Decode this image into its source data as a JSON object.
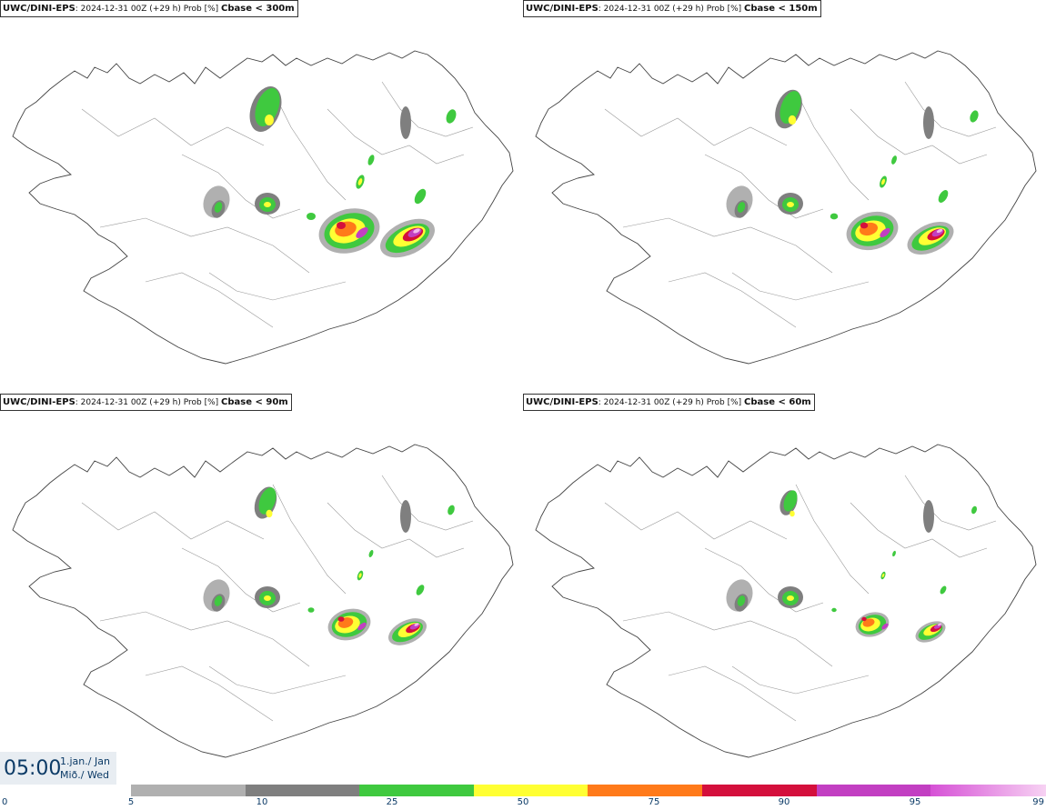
{
  "panels": [
    {
      "model": "UWC/DINI-EPS",
      "run": ": 2024-12-31 00Z (+29 h) Prob [%]",
      "field": "Cbase < 300m"
    },
    {
      "model": "UWC/DINI-EPS",
      "run": ": 2024-12-31 00Z (+29 h) Prob [%]",
      "field": "Cbase < 150m"
    },
    {
      "model": "UWC/DINI-EPS",
      "run": ": 2024-12-31 00Z (+29 h) Prob [%]",
      "field": "Cbase < 90m"
    },
    {
      "model": "UWC/DINI-EPS",
      "run": ": 2024-12-31 00Z (+29 h) Prob [%]",
      "field": "Cbase < 60m"
    }
  ],
  "time": {
    "clock": "05:00",
    "date": "1.jan./ Jan",
    "weekday": "Mið./ Wed"
  },
  "legend": {
    "ticks": [
      "0",
      "5",
      "10",
      "25",
      "50",
      "75",
      "90",
      "95",
      "99"
    ],
    "colors": [
      "#b0b0b0",
      "#7f7f7f",
      "#3fc93f",
      "#ffff33",
      "#ff7a1a",
      "#d40f3c",
      "#c23fc2",
      "#f3b8ee"
    ]
  },
  "map_icons": [
    "iceland-outline",
    "probability-contours"
  ]
}
